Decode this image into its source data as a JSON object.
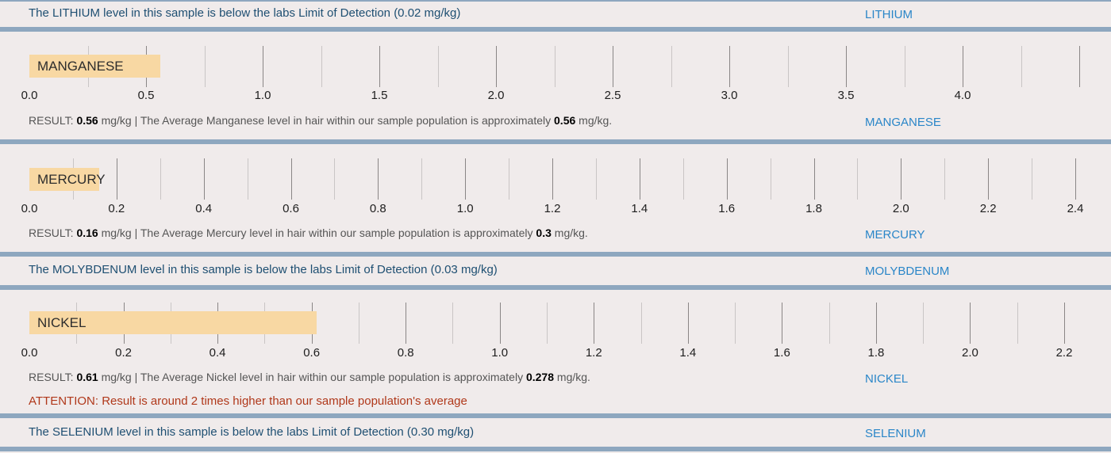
{
  "colors": {
    "bar": "#f8d8a3",
    "separator": "#8ea7bf",
    "note_text": "#1e4f72",
    "link": "#2a86c8",
    "attention": "#b0381a",
    "background": "#f0ebeb"
  },
  "lithium": {
    "note": "The LITHIUM level in this sample is below the labs Limit of Detection (0.02 mg/kg)",
    "link": "LITHIUM"
  },
  "manganese": {
    "label": "MANGANESE",
    "result_prefix": "RESULT: ",
    "result_value": "0.56",
    "result_mid": " mg/kg | The Average Manganese level in hair within our sample population is approximately ",
    "average_value": "0.56",
    "result_suffix": " mg/kg.",
    "link": "MANGANESE"
  },
  "mercury": {
    "label": "MERCURY",
    "result_prefix": "RESULT: ",
    "result_value": "0.16",
    "result_mid": " mg/kg | The Average Mercury level in hair within our sample population is approximately ",
    "average_value": "0.3",
    "result_suffix": " mg/kg.",
    "link": "MERCURY"
  },
  "molybdenum": {
    "note": "The MOLYBDENUM level in this sample is below the labs Limit of Detection (0.03 mg/kg)",
    "link": "MOLYBDENUM"
  },
  "nickel": {
    "label": "NICKEL",
    "result_prefix": "RESULT: ",
    "result_value": "0.61",
    "result_mid": " mg/kg | The Average Nickel level in hair within our sample population is approximately ",
    "average_value": "0.278",
    "result_suffix": " mg/kg.",
    "attention": "ATTENTION: Result is around 2 times higher than our sample population's average",
    "link": "NICKEL"
  },
  "selenium": {
    "note": "The SELENIUM level in this sample is below the labs Limit of Detection (0.30 mg/kg)",
    "link": "SELENIUM"
  },
  "chart_data": [
    {
      "type": "bar",
      "categories": [
        "MANGANESE"
      ],
      "values": [
        0.56
      ],
      "xlim": [
        0,
        4.5
      ],
      "tick_labels": [
        "0.0",
        "0.5",
        "1.0",
        "1.5",
        "2.0",
        "2.5",
        "3.0",
        "3.5",
        "4.0"
      ],
      "unit": "mg/kg"
    },
    {
      "type": "bar",
      "categories": [
        "MERCURY"
      ],
      "values": [
        0.16
      ],
      "xlim": [
        0,
        2.4
      ],
      "tick_labels": [
        "0.0",
        "0.2",
        "0.4",
        "0.6",
        "0.8",
        "1.0",
        "1.2",
        "1.4",
        "1.6",
        "1.8",
        "2.0",
        "2.2",
        "2.4"
      ],
      "unit": "mg/kg"
    },
    {
      "type": "bar",
      "categories": [
        "NICKEL"
      ],
      "values": [
        0.61
      ],
      "xlim": [
        0,
        2.2
      ],
      "tick_labels": [
        "0.0",
        "0.2",
        "0.4",
        "0.6",
        "0.8",
        "1.0",
        "1.2",
        "1.4",
        "1.6",
        "1.8",
        "2.0",
        "2.2"
      ],
      "unit": "mg/kg"
    }
  ]
}
